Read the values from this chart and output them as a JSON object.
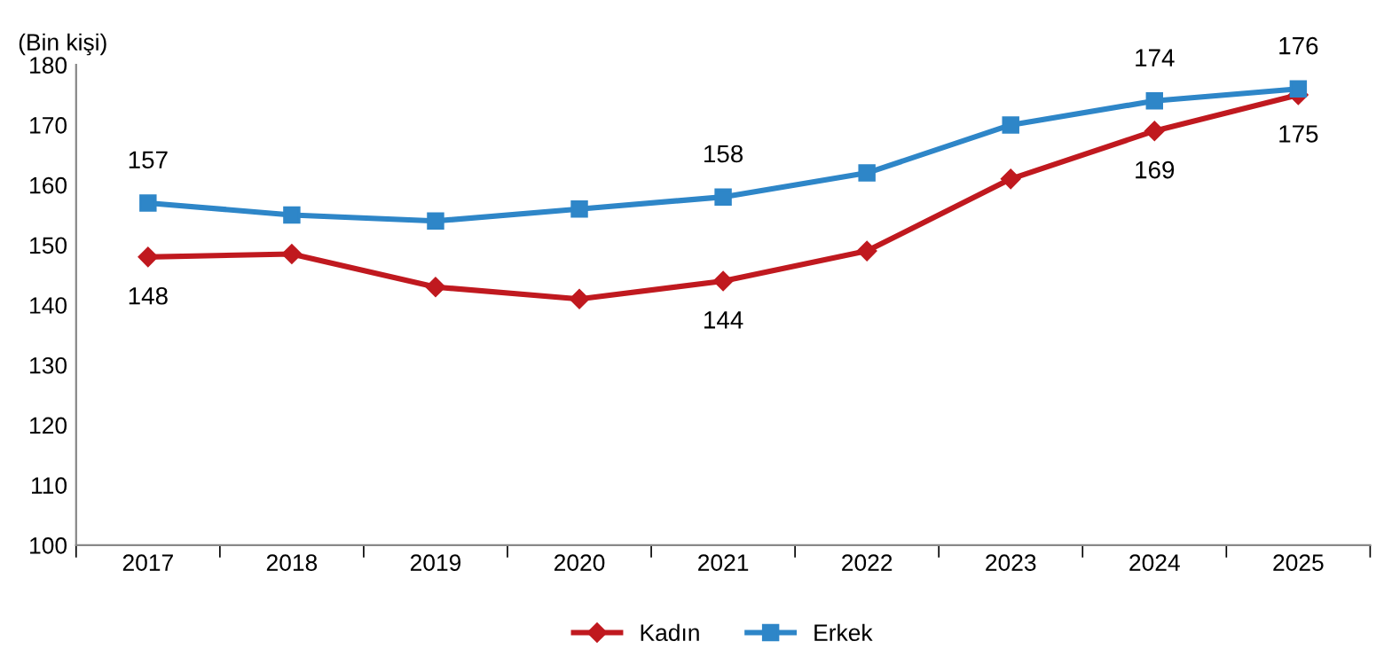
{
  "chart_data": {
    "type": "line",
    "ylabel": "(Bin kişi)",
    "categories": [
      "2017",
      "2018",
      "2019",
      "2020",
      "2021",
      "2022",
      "2023",
      "2024",
      "2025"
    ],
    "series": [
      {
        "name": "Kadın",
        "color": "#c0191f",
        "marker": "diamond",
        "values": [
          148,
          148.5,
          143,
          141,
          144,
          149,
          161,
          169,
          175
        ],
        "value_labels": [
          "148",
          null,
          null,
          null,
          "144",
          null,
          null,
          "169",
          "175"
        ]
      },
      {
        "name": "Erkek",
        "color": "#2e86c8",
        "marker": "square",
        "values": [
          157,
          155,
          154,
          156,
          158,
          162,
          170,
          174,
          176
        ],
        "value_labels": [
          "157",
          null,
          null,
          null,
          "158",
          null,
          null,
          "174",
          "176"
        ]
      }
    ],
    "ylim": [
      100,
      180
    ],
    "yticks": [
      100,
      110,
      120,
      130,
      140,
      150,
      160,
      170,
      180
    ],
    "grid": false,
    "legend": "bottom",
    "line_style": "solid"
  }
}
